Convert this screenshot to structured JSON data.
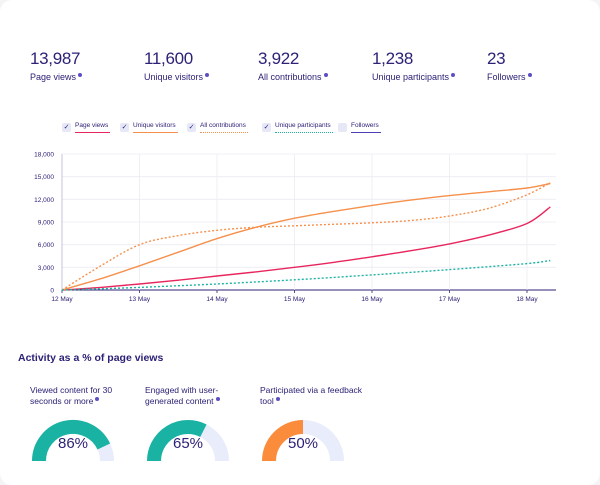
{
  "stats": [
    {
      "value": "13,987",
      "label": "Page views"
    },
    {
      "value": "11,600",
      "label": "Unique visitors"
    },
    {
      "value": "3,922",
      "label": "All contributions"
    },
    {
      "value": "1,238",
      "label": "Unique participants"
    },
    {
      "value": "23",
      "label": "Followers"
    }
  ],
  "legend": [
    {
      "label": "Page views",
      "checked": true,
      "color": "#e8265e",
      "style": "solid"
    },
    {
      "label": "Unique visitors",
      "checked": true,
      "color": "#f5914d",
      "style": "solid"
    },
    {
      "label": "All contributions",
      "checked": true,
      "color": "#f5914d",
      "style": "dotted"
    },
    {
      "label": "Unique participants",
      "checked": true,
      "color": "#1ab3a3",
      "style": "dotted"
    },
    {
      "label": "Followers",
      "checked": false,
      "color": "#4a3fb5",
      "style": "solid"
    }
  ],
  "chart_data": {
    "type": "line",
    "title": "",
    "xlabel": "",
    "ylabel": "",
    "x": [
      "12 May",
      "13 May",
      "14 May",
      "15 May",
      "16 May",
      "17 May",
      "18 May"
    ],
    "y_ticks": [
      "0",
      "3,000",
      "6,000",
      "9,000",
      "12,000",
      "15,000",
      "18,000"
    ],
    "ylim": [
      0,
      18000
    ],
    "grid": true,
    "series": [
      {
        "name": "Page views",
        "color": "#e8265e",
        "dash": "",
        "x": [
          0,
          0.5,
          1,
          1.5,
          2,
          2.5,
          3,
          3.5,
          4,
          4.5,
          5,
          5.5,
          6,
          6.3
        ],
        "values": [
          0,
          350,
          800,
          1300,
          1850,
          2400,
          3000,
          3650,
          4400,
          5200,
          6100,
          7250,
          8800,
          11000
        ]
      },
      {
        "name": "Unique visitors",
        "color": "#f5914d",
        "dash": "",
        "x": [
          0,
          0.5,
          1,
          1.5,
          2,
          2.5,
          3,
          3.5,
          4,
          4.5,
          5,
          5.5,
          6,
          6.3
        ],
        "values": [
          0,
          1500,
          3200,
          5000,
          6800,
          8300,
          9500,
          10400,
          11200,
          11900,
          12500,
          13000,
          13500,
          14100
        ]
      },
      {
        "name": "All contributions",
        "color": "#f5914d",
        "dash": "2,2",
        "x": [
          0,
          0.5,
          1,
          1.5,
          2,
          2.5,
          3,
          3.5,
          4,
          4.5,
          5,
          5.5,
          6,
          6.3
        ],
        "values": [
          0,
          3200,
          6000,
          7200,
          7900,
          8300,
          8500,
          8700,
          8900,
          9200,
          9800,
          10800,
          12600,
          14200
        ]
      },
      {
        "name": "Unique participants",
        "color": "#1ab3a3",
        "dash": "2,2",
        "x": [
          0,
          1,
          2,
          3,
          4,
          5,
          6,
          6.3
        ],
        "values": [
          0,
          350,
          800,
          1350,
          2000,
          2700,
          3500,
          3900
        ]
      }
    ]
  },
  "activity": {
    "title": "Activity as a % of page views",
    "gauges": [
      {
        "label": "Viewed content for 30 seconds or more",
        "value": 86,
        "pct": "86%",
        "color": "#1ab3a3"
      },
      {
        "label": "Engaged with user-generated content",
        "value": 65,
        "pct": "65%",
        "color": "#1ab3a3"
      },
      {
        "label": "Participated via a feedback tool",
        "value": 50,
        "pct": "50%",
        "color": "#fa8c3c"
      }
    ]
  }
}
